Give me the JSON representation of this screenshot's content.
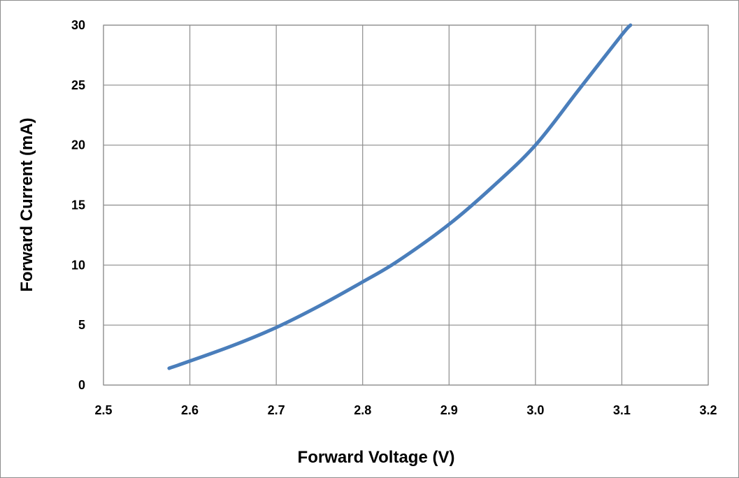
{
  "chart_data": {
    "type": "line",
    "title": "",
    "xlabel": "Forward Voltage (V)",
    "ylabel": "Forward Current (mA)",
    "xlim": [
      2.5,
      3.2
    ],
    "ylim": [
      0,
      30
    ],
    "x_ticks": [
      "2.5",
      "2.6",
      "2.7",
      "2.8",
      "2.9",
      "3.0",
      "3.1",
      "3.2"
    ],
    "y_ticks": [
      "0",
      "5",
      "10",
      "15",
      "20",
      "25",
      "30"
    ],
    "grid": true,
    "legend": "none",
    "series": [
      {
        "color": "#4a7ebb",
        "x": [
          2.576,
          2.6,
          2.65,
          2.7,
          2.75,
          2.8,
          2.84,
          2.9,
          2.95,
          3.0,
          3.05,
          3.1,
          3.11
        ],
        "y": [
          1.4,
          2.0,
          3.3,
          4.8,
          6.6,
          8.6,
          10.3,
          13.4,
          16.5,
          20.0,
          24.6,
          29.2,
          30.0
        ]
      }
    ]
  }
}
